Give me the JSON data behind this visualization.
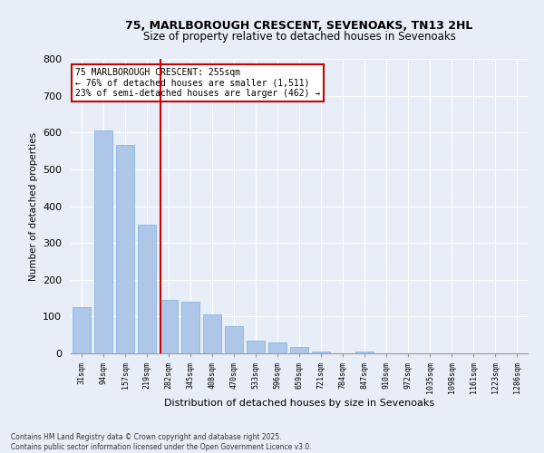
{
  "title1": "75, MARLBOROUGH CRESCENT, SEVENOAKS, TN13 2HL",
  "title2": "Size of property relative to detached houses in Sevenoaks",
  "xlabel": "Distribution of detached houses by size in Sevenoaks",
  "ylabel": "Number of detached properties",
  "categories": [
    "31sqm",
    "94sqm",
    "157sqm",
    "219sqm",
    "282sqm",
    "345sqm",
    "408sqm",
    "470sqm",
    "533sqm",
    "596sqm",
    "659sqm",
    "721sqm",
    "784sqm",
    "847sqm",
    "910sqm",
    "972sqm",
    "1035sqm",
    "1098sqm",
    "1161sqm",
    "1223sqm",
    "1286sqm"
  ],
  "values": [
    125,
    605,
    565,
    350,
    145,
    140,
    105,
    75,
    35,
    30,
    18,
    5,
    0,
    5,
    0,
    0,
    0,
    0,
    0,
    0,
    0
  ],
  "bar_color": "#aec6e8",
  "bar_edge_color": "#7aafe0",
  "vline_x_index": 3.62,
  "vline_color": "#cc0000",
  "annotation_text": "75 MARLBOROUGH CRESCENT: 255sqm\n← 76% of detached houses are smaller (1,511)\n23% of semi-detached houses are larger (462) →",
  "annotation_box_color": "#ffffff",
  "annotation_box_edge": "#cc0000",
  "yticks": [
    0,
    100,
    200,
    300,
    400,
    500,
    600,
    700,
    800
  ],
  "ylim": [
    0,
    800
  ],
  "background_color": "#e8eef8",
  "grid_color": "#ffffff",
  "footer1": "Contains HM Land Registry data © Crown copyright and database right 2025.",
  "footer2": "Contains public sector information licensed under the Open Government Licence v3.0."
}
